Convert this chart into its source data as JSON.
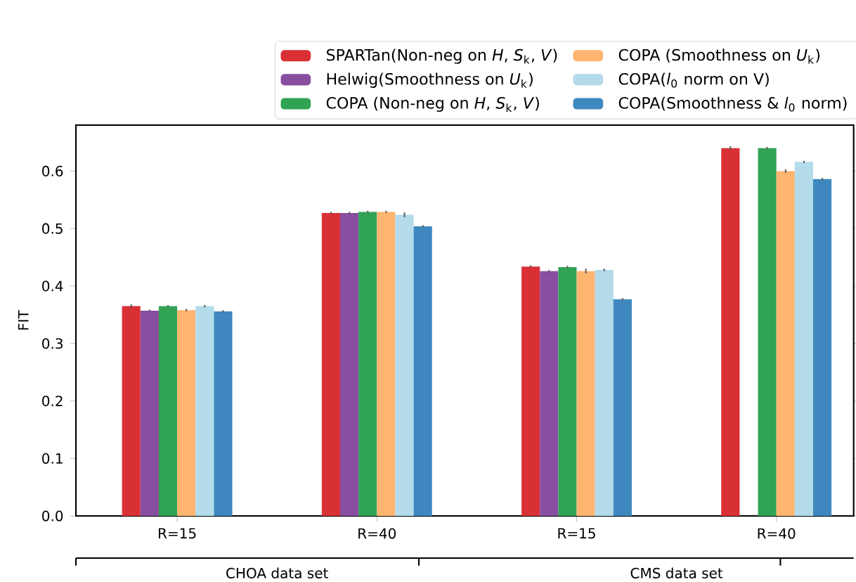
{
  "chart_data": {
    "type": "bar",
    "ylabel": "FIT",
    "categories": [
      "R=15",
      "R=40",
      "R=15",
      "R=40"
    ],
    "series": [
      {
        "name": "SPARTan(Non-neg on *H*, *S*$_{k}$, *V*)",
        "color": "#d93035",
        "values": [
          0.365,
          0.527,
          0.434,
          0.64
        ],
        "errors": [
          0.003,
          0.002,
          0.002,
          0.003
        ]
      },
      {
        "name": "Helwig(Smoothness on *U*$_{k}$)",
        "color": "#884ea0",
        "values": [
          0.357,
          0.527,
          0.426,
          null
        ],
        "errors": [
          0.002,
          0.002,
          0.002,
          null
        ]
      },
      {
        "name": "COPA (Non-neg on *H*, *S*$_{k}$, *V*)",
        "color": "#31a354",
        "values": [
          0.365,
          0.529,
          0.433,
          0.64
        ],
        "errors": [
          0.002,
          0.002,
          0.002,
          0.002
        ]
      },
      {
        "name": "COPA (Smoothness on *U*$_{k}$)",
        "color": "#fdb570",
        "values": [
          0.358,
          0.529,
          0.426,
          0.6
        ],
        "errors": [
          0.002,
          0.002,
          0.004,
          0.003
        ]
      },
      {
        "name": "COPA(*l*$_{0}$ norm on V)",
        "color": "#b3dbea",
        "values": [
          0.365,
          0.524,
          0.428,
          0.616
        ],
        "errors": [
          0.002,
          0.004,
          0.002,
          0.002
        ]
      },
      {
        "name": "COPA(Smoothness & *l*$_{0}$ norm)",
        "color": "#3f88bf",
        "values": [
          0.356,
          0.504,
          0.377,
          0.586
        ],
        "errors": [
          0.002,
          0.002,
          0.002,
          0.002
        ]
      }
    ],
    "ylim": [
      0,
      0.68
    ],
    "yticks": [
      {
        "value": 0,
        "label": "0.0"
      },
      0.1,
      0.2,
      0.3,
      0.4,
      0.5,
      0.6
    ],
    "annotations": [
      "CHOA data set",
      "CMS data set"
    ],
    "legend": "top",
    "grid": false
  }
}
